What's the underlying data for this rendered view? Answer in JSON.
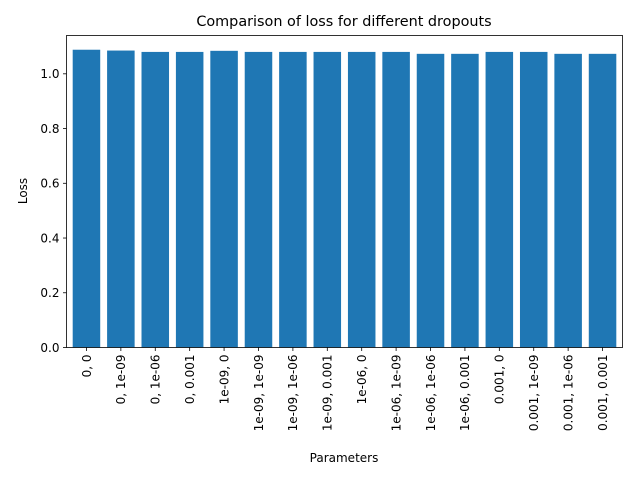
{
  "chart_data": {
    "type": "bar",
    "title": "Comparison of loss for different dropouts",
    "xlabel": "Parameters",
    "ylabel": "Loss",
    "ylim": [
      0,
      1.14
    ],
    "yticks": [
      0.0,
      0.2,
      0.4,
      0.6,
      0.8,
      1.0
    ],
    "ytick_labels": [
      "0.0",
      "0.2",
      "0.4",
      "0.6",
      "0.8",
      "1.0"
    ],
    "grid": false,
    "color": "#1f77b4",
    "categories": [
      "0, 0",
      "0, 1e-09",
      "0, 1e-06",
      "0, 0.001",
      "1e-09, 0",
      "1e-09, 1e-09",
      "1e-09, 1e-06",
      "1e-09, 0.001",
      "1e-06, 0",
      "1e-06, 1e-09",
      "1e-06, 1e-06",
      "1e-06, 0.001",
      "0.001, 0",
      "0.001, 1e-09",
      "0.001, 1e-06",
      "0.001, 0.001"
    ],
    "values": [
      1.088,
      1.085,
      1.08,
      1.08,
      1.084,
      1.08,
      1.08,
      1.08,
      1.08,
      1.08,
      1.073,
      1.073,
      1.08,
      1.08,
      1.073,
      1.073
    ]
  }
}
